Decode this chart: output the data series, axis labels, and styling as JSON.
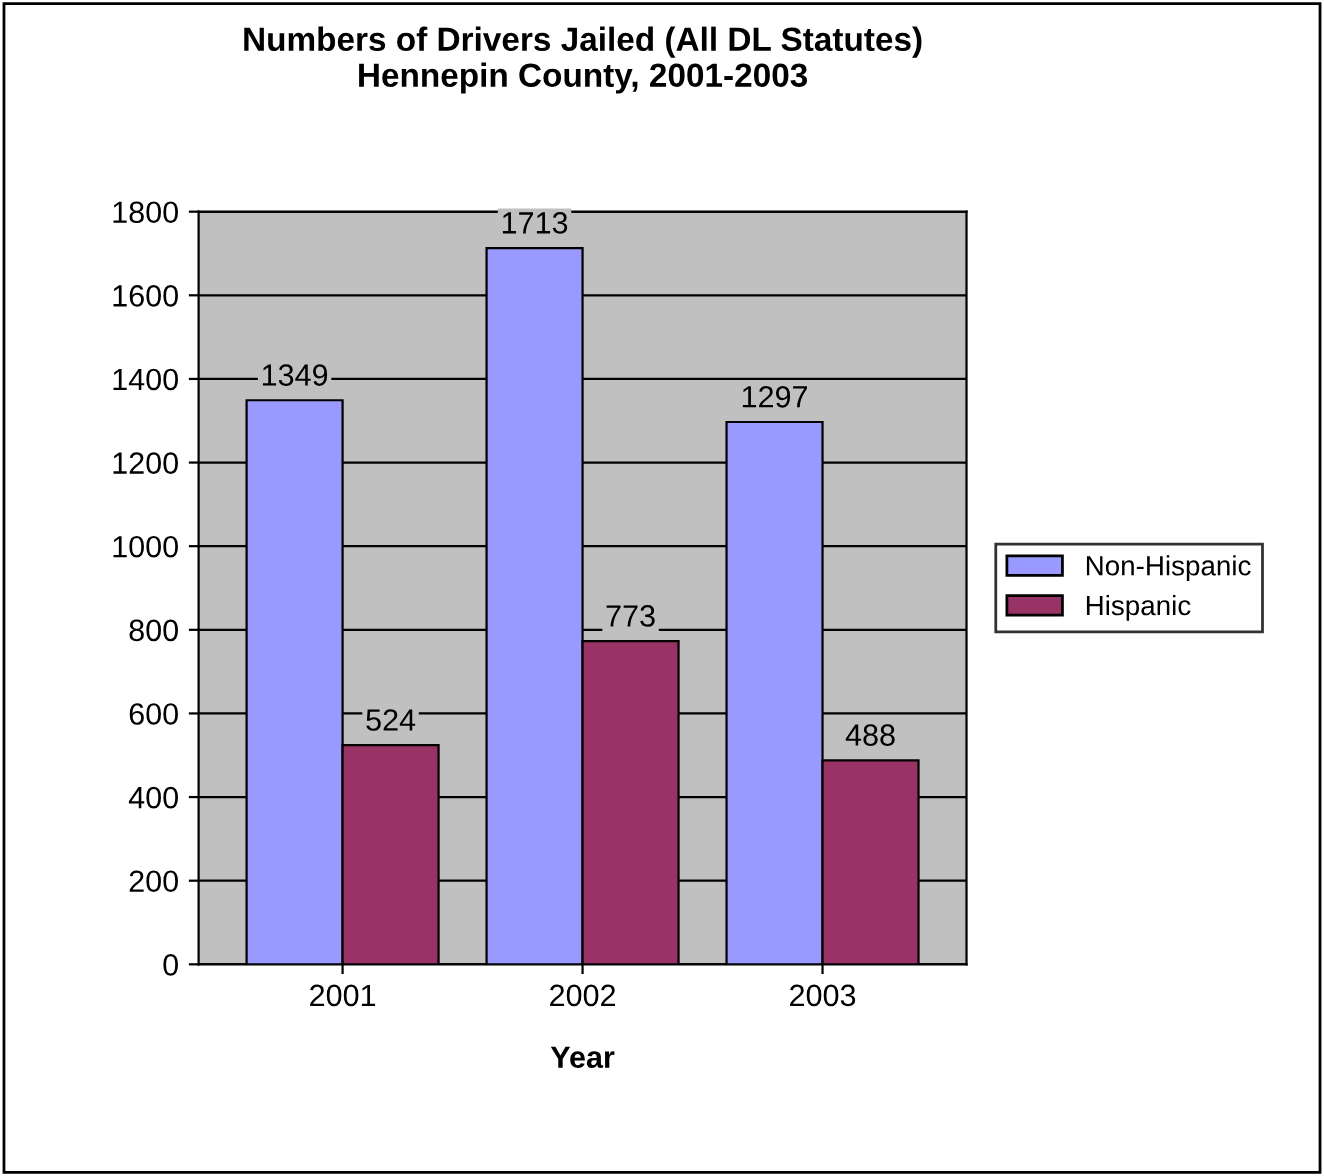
{
  "chart_data": {
    "type": "bar",
    "title": "Numbers of Drivers Jailed (All DL Statutes)\nHennepin County, 2001-2003",
    "xlabel": "Year",
    "categories": [
      "2001",
      "2002",
      "2003"
    ],
    "series": [
      {
        "name": "Non-Hispanic",
        "color": "#9999ff",
        "values": [
          1349,
          1713,
          1297
        ]
      },
      {
        "name": "Hispanic",
        "color": "#993366",
        "values": [
          524,
          773,
          488
        ]
      }
    ],
    "ylim": [
      0,
      1800
    ],
    "yticks": [
      0,
      200,
      400,
      600,
      800,
      1000,
      1200,
      1400,
      1600,
      1800
    ],
    "grid": "y",
    "legend": "right",
    "data_labels": true
  }
}
